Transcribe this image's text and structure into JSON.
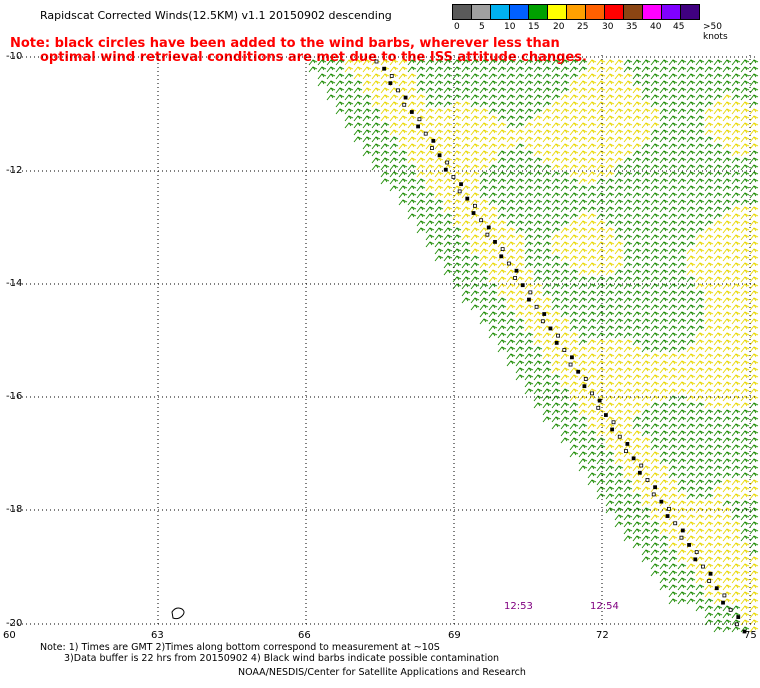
{
  "title": "Rapidscat Corrected Winds(12.5KM) v1.1 20150902 descending",
  "note_line1": "Note: black circles have been added to the wind barbs, wherever less than",
  "note_line2": "optimal wind retrieval conditions are met due to the ISS attitude changes.",
  "legend": {
    "labels": [
      "0",
      "5",
      "10",
      "15",
      "20",
      "25",
      "30",
      "35",
      "40",
      "45",
      ">50 knots"
    ],
    "colors": [
      "#5a5a5a",
      "#a0a0a0",
      "#00b0f0",
      "#0060ff",
      "#00a000",
      "#ffff00",
      "#ffa000",
      "#ff6000",
      "#ff0000",
      "#8b4513",
      "#ff00ff",
      "#8000ff",
      "#400080"
    ]
  },
  "y_axis": [
    "-10",
    "-12",
    "-14",
    "-16",
    "-18",
    "-20"
  ],
  "x_axis": [
    "60",
    "63",
    "66",
    "69",
    "72",
    "75"
  ],
  "times": [
    "12:53",
    "12:54"
  ],
  "footer": {
    "line1": "Note: 1) Times are GMT 2)Times along bottom correspond to measurement at ~10S",
    "line2": "3)Data buffer is 22 hrs from 20150902 4) Black wind barbs indicate possible contamination",
    "line3": "NOAA/NESDIS/Center for Satellite Applications and Research"
  },
  "colors": {
    "yellow_barb": "#e8d800",
    "green_barb": "#1a8a00",
    "grid": "#000000",
    "time_label": "#800080",
    "note": "#ff0000"
  }
}
